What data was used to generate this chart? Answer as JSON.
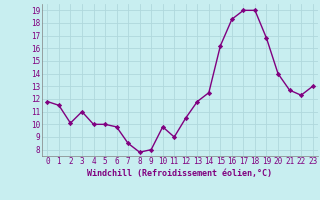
{
  "x": [
    0,
    1,
    2,
    3,
    4,
    5,
    6,
    7,
    8,
    9,
    10,
    11,
    12,
    13,
    14,
    15,
    16,
    17,
    18,
    19,
    20,
    21,
    22,
    23
  ],
  "y": [
    11.8,
    11.5,
    10.1,
    11.0,
    10.0,
    10.0,
    9.8,
    8.5,
    7.8,
    8.0,
    9.8,
    9.0,
    10.5,
    11.8,
    12.5,
    16.2,
    18.3,
    19.0,
    19.0,
    16.8,
    14.0,
    12.7,
    12.3,
    13.0
  ],
  "line_color": "#800080",
  "marker": "D",
  "markersize": 2.2,
  "linewidth": 1.0,
  "bg_color": "#c8eef0",
  "grid_color": "#b0d8dc",
  "xlabel": "Windchill (Refroidissement éolien,°C)",
  "xlabel_color": "#800080",
  "tick_color": "#800080",
  "xlim": [
    -0.5,
    23.5
  ],
  "ylim": [
    7.5,
    19.5
  ],
  "yticks": [
    8,
    9,
    10,
    11,
    12,
    13,
    14,
    15,
    16,
    17,
    18,
    19
  ],
  "xticks": [
    0,
    1,
    2,
    3,
    4,
    5,
    6,
    7,
    8,
    9,
    10,
    11,
    12,
    13,
    14,
    15,
    16,
    17,
    18,
    19,
    20,
    21,
    22,
    23
  ],
  "tick_fontsize": 5.5,
  "xlabel_fontsize": 6.0
}
